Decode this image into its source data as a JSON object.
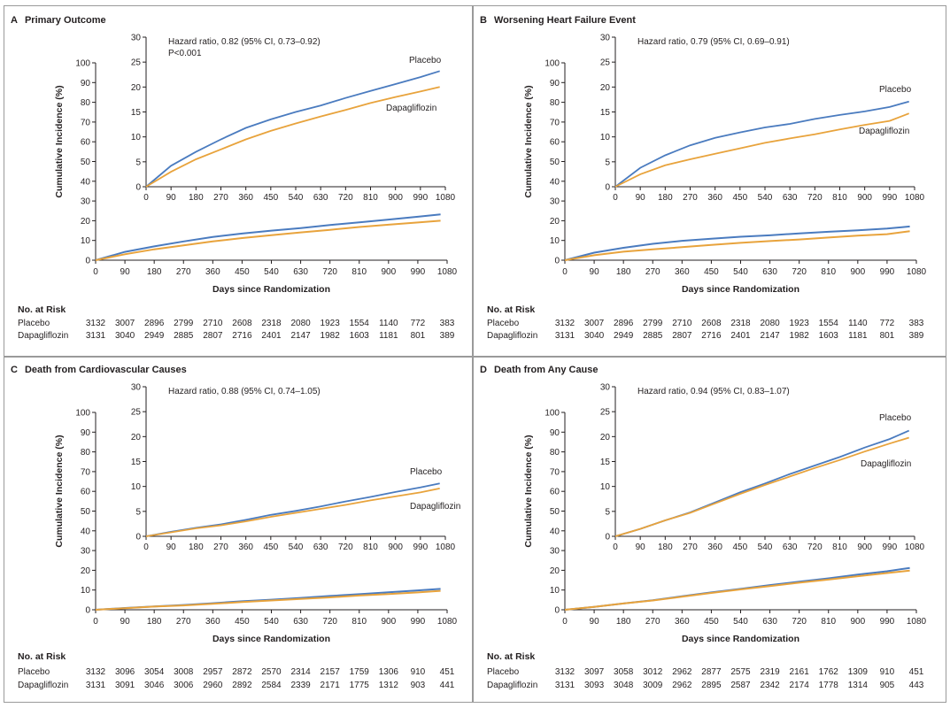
{
  "figure": {
    "axis_title_x": "Days since Randomization",
    "axis_title_y": "Cumulative Incidence (%)",
    "risk_header": "No. at Risk",
    "colors": {
      "placebo": "#4a7bbf",
      "dapagliflozin": "#e8a33c",
      "axis": "#231f20",
      "frame": "#9a9a9a"
    }
  },
  "chart_data": [
    {
      "type": "line",
      "panel_letter": "A",
      "title": "Primary Outcome",
      "hr_text": "Hazard ratio, 0.82 (95% CI, 0.73–0.92)",
      "p_text": "P<0.001",
      "x_ticks": [
        "0",
        "90",
        "180",
        "270",
        "360",
        "450",
        "540",
        "630",
        "720",
        "810",
        "900",
        "990",
        "1080"
      ],
      "y_ticks": [
        "0",
        "10",
        "20",
        "30",
        "40",
        "50",
        "60",
        "70",
        "80",
        "90",
        "100"
      ],
      "inset_y_ticks": [
        "0",
        "5",
        "10",
        "15",
        "20",
        "25",
        "30"
      ],
      "xlim": [
        0,
        1080
      ],
      "ylim": [
        0,
        100
      ],
      "inset_ylim": [
        0,
        30
      ],
      "x": [
        0,
        90,
        180,
        270,
        360,
        450,
        540,
        630,
        720,
        810,
        900,
        990,
        1060
      ],
      "series": [
        {
          "name": "Placebo",
          "values": [
            0,
            4.2,
            7.0,
            9.5,
            11.8,
            13.5,
            15.0,
            16.3,
            17.8,
            19.2,
            20.6,
            22.0,
            23.2
          ]
        },
        {
          "name": "Dapagliflozin",
          "values": [
            0,
            3.0,
            5.5,
            7.5,
            9.5,
            11.2,
            12.7,
            14.1,
            15.4,
            16.8,
            18.0,
            19.1,
            20.0
          ]
        }
      ],
      "risk_rows": [
        {
          "label": "Placebo",
          "values": [
            "3132",
            "3007",
            "2896",
            "2799",
            "2710",
            "2608",
            "2318",
            "2080",
            "1923",
            "1554",
            "1140",
            "772",
            "383"
          ]
        },
        {
          "label": "Dapagliflozin",
          "values": [
            "3131",
            "3040",
            "2949",
            "2885",
            "2807",
            "2716",
            "2401",
            "2147",
            "1982",
            "1603",
            "1181",
            "801",
            "389"
          ]
        }
      ]
    },
    {
      "type": "line",
      "panel_letter": "B",
      "title": "Worsening Heart Failure Event",
      "hr_text": "Hazard ratio, 0.79 (95% CI, 0.69–0.91)",
      "x_ticks": [
        "0",
        "90",
        "180",
        "270",
        "360",
        "450",
        "540",
        "630",
        "720",
        "810",
        "900",
        "990",
        "1080"
      ],
      "y_ticks": [
        "0",
        "10",
        "20",
        "30",
        "40",
        "50",
        "60",
        "70",
        "80",
        "90",
        "100"
      ],
      "inset_y_ticks": [
        "0",
        "5",
        "10",
        "15",
        "20",
        "25",
        "30"
      ],
      "xlim": [
        0,
        1080
      ],
      "ylim": [
        0,
        100
      ],
      "inset_ylim": [
        0,
        30
      ],
      "x": [
        0,
        90,
        180,
        270,
        360,
        450,
        540,
        630,
        720,
        810,
        900,
        990,
        1060
      ],
      "series": [
        {
          "name": "Placebo",
          "values": [
            0,
            3.8,
            6.3,
            8.3,
            9.8,
            10.9,
            11.9,
            12.6,
            13.6,
            14.4,
            15.1,
            16.0,
            17.1
          ]
        },
        {
          "name": "Dapagliflozin",
          "values": [
            0,
            2.5,
            4.3,
            5.5,
            6.6,
            7.7,
            8.8,
            9.7,
            10.5,
            11.5,
            12.4,
            13.2,
            14.7
          ]
        }
      ],
      "risk_rows": [
        {
          "label": "Placebo",
          "values": [
            "3132",
            "3007",
            "2896",
            "2799",
            "2710",
            "2608",
            "2318",
            "2080",
            "1923",
            "1554",
            "1140",
            "772",
            "383"
          ]
        },
        {
          "label": "Dapagliflozin",
          "values": [
            "3131",
            "3040",
            "2949",
            "2885",
            "2807",
            "2716",
            "2401",
            "2147",
            "1982",
            "1603",
            "1181",
            "801",
            "389"
          ]
        }
      ]
    },
    {
      "type": "line",
      "panel_letter": "C",
      "title": "Death from Cardiovascular Causes",
      "hr_text": "Hazard ratio, 0.88 (95% CI, 0.74–1.05)",
      "x_ticks": [
        "0",
        "90",
        "180",
        "270",
        "360",
        "450",
        "540",
        "630",
        "720",
        "810",
        "900",
        "990",
        "1080"
      ],
      "y_ticks": [
        "0",
        "10",
        "20",
        "30",
        "40",
        "50",
        "60",
        "70",
        "80",
        "90",
        "100"
      ],
      "inset_y_ticks": [
        "0",
        "5",
        "10",
        "15",
        "20",
        "25",
        "30"
      ],
      "xlim": [
        0,
        1080
      ],
      "ylim": [
        0,
        100
      ],
      "inset_ylim": [
        0,
        30
      ],
      "x": [
        0,
        90,
        180,
        270,
        360,
        450,
        540,
        630,
        720,
        810,
        900,
        990,
        1060
      ],
      "series": [
        {
          "name": "Placebo",
          "values": [
            0,
            0.9,
            1.7,
            2.4,
            3.3,
            4.3,
            5.1,
            6.0,
            7.0,
            7.9,
            8.9,
            9.8,
            10.6
          ]
        },
        {
          "name": "Dapagliflozin",
          "values": [
            0,
            0.8,
            1.6,
            2.2,
            3.0,
            3.9,
            4.7,
            5.5,
            6.3,
            7.2,
            8.0,
            8.8,
            9.6
          ]
        }
      ],
      "risk_rows": [
        {
          "label": "Placebo",
          "values": [
            "3132",
            "3096",
            "3054",
            "3008",
            "2957",
            "2872",
            "2570",
            "2314",
            "2157",
            "1759",
            "1306",
            "910",
            "451"
          ]
        },
        {
          "label": "Dapagliflozin",
          "values": [
            "3131",
            "3091",
            "3046",
            "3006",
            "2960",
            "2892",
            "2584",
            "2339",
            "2171",
            "1775",
            "1312",
            "903",
            "441"
          ]
        }
      ]
    },
    {
      "type": "line",
      "panel_letter": "D",
      "title": "Death from Any Cause",
      "hr_text": "Hazard ratio, 0.94 (95% CI, 0.83–1.07)",
      "x_ticks": [
        "0",
        "90",
        "180",
        "270",
        "360",
        "450",
        "540",
        "630",
        "720",
        "810",
        "900",
        "990",
        "1080"
      ],
      "y_ticks": [
        "0",
        "10",
        "20",
        "30",
        "40",
        "50",
        "60",
        "70",
        "80",
        "90",
        "100"
      ],
      "inset_y_ticks": [
        "0",
        "5",
        "10",
        "15",
        "20",
        "25",
        "30"
      ],
      "xlim": [
        0,
        1080
      ],
      "ylim": [
        0,
        100
      ],
      "inset_ylim": [
        0,
        30
      ],
      "x": [
        0,
        90,
        180,
        270,
        360,
        450,
        540,
        630,
        720,
        810,
        900,
        990,
        1060
      ],
      "series": [
        {
          "name": "Placebo",
          "values": [
            0,
            1.5,
            3.2,
            4.8,
            6.8,
            8.8,
            10.6,
            12.5,
            14.2,
            15.9,
            17.8,
            19.5,
            21.2
          ]
        },
        {
          "name": "Dapagliflozin",
          "values": [
            0,
            1.5,
            3.2,
            4.7,
            6.6,
            8.5,
            10.3,
            12.0,
            13.7,
            15.3,
            17.0,
            18.6,
            19.8
          ]
        }
      ],
      "risk_rows": [
        {
          "label": "Placebo",
          "values": [
            "3132",
            "3097",
            "3058",
            "3012",
            "2962",
            "2877",
            "2575",
            "2319",
            "2161",
            "1762",
            "1309",
            "910",
            "451"
          ]
        },
        {
          "label": "Dapagliflozin",
          "values": [
            "3131",
            "3093",
            "3048",
            "3009",
            "2962",
            "2895",
            "2587",
            "2342",
            "2174",
            "1778",
            "1314",
            "905",
            "443"
          ]
        }
      ]
    }
  ]
}
